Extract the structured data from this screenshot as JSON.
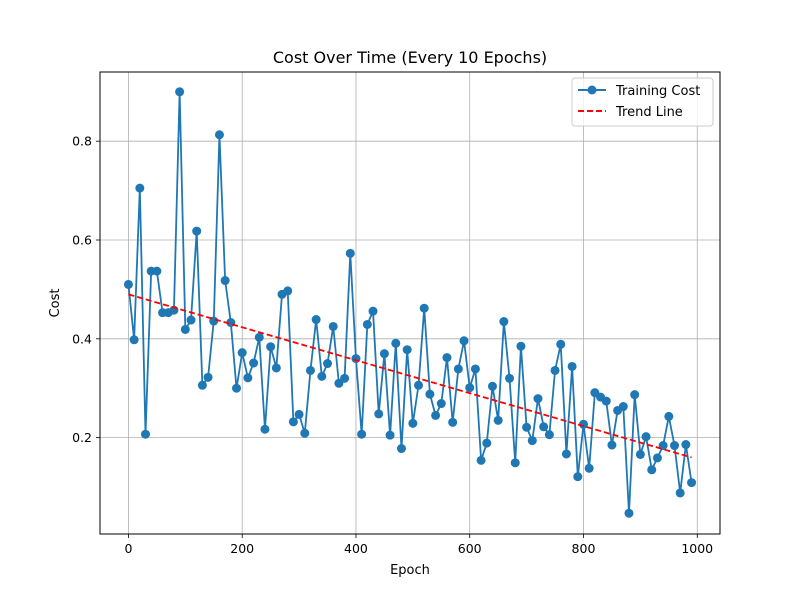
{
  "chart_data": {
    "type": "line",
    "title": "Cost Over Time (Every 10 Epochs)",
    "xlabel": "Epoch",
    "ylabel": "Cost",
    "xlim": [
      -50,
      1040
    ],
    "ylim": [
      0.005,
      0.94
    ],
    "x_ticks": [
      0,
      200,
      400,
      600,
      800,
      1000
    ],
    "y_ticks": [
      0.2,
      0.4,
      0.6,
      0.8
    ],
    "x_tick_labels": [
      "0",
      "200",
      "400",
      "600",
      "800",
      "1000"
    ],
    "y_tick_labels": [
      "0.2",
      "0.4",
      "0.6",
      "0.8"
    ],
    "grid": true,
    "legend_position": "top-right",
    "x": [
      0,
      10,
      20,
      30,
      40,
      50,
      60,
      70,
      80,
      90,
      100,
      110,
      120,
      130,
      140,
      150,
      160,
      170,
      180,
      190,
      200,
      210,
      220,
      230,
      240,
      250,
      260,
      270,
      280,
      290,
      300,
      310,
      320,
      330,
      340,
      350,
      360,
      370,
      380,
      390,
      400,
      410,
      420,
      430,
      440,
      450,
      460,
      470,
      480,
      490,
      500,
      510,
      520,
      530,
      540,
      550,
      560,
      570,
      580,
      590,
      600,
      610,
      620,
      630,
      640,
      650,
      660,
      670,
      680,
      690,
      700,
      710,
      720,
      730,
      740,
      750,
      760,
      770,
      780,
      790,
      800,
      810,
      820,
      830,
      840,
      850,
      860,
      870,
      880,
      890,
      900,
      910,
      920,
      930,
      940,
      950,
      960,
      970,
      980,
      990
    ],
    "series": [
      {
        "name": "Training Cost",
        "color": "#1f77b4",
        "style": "solid-with-circle-markers",
        "values": [
          0.51,
          0.398,
          0.705,
          0.207,
          0.537,
          0.537,
          0.453,
          0.453,
          0.458,
          0.9,
          0.419,
          0.438,
          0.618,
          0.306,
          0.322,
          0.436,
          0.813,
          0.518,
          0.433,
          0.3,
          0.372,
          0.321,
          0.351,
          0.403,
          0.217,
          0.384,
          0.341,
          0.49,
          0.497,
          0.232,
          0.247,
          0.209,
          0.336,
          0.439,
          0.324,
          0.35,
          0.425,
          0.31,
          0.32,
          0.573,
          0.36,
          0.207,
          0.429,
          0.456,
          0.248,
          0.37,
          0.205,
          0.391,
          0.178,
          0.378,
          0.229,
          0.306,
          0.462,
          0.288,
          0.245,
          0.269,
          0.362,
          0.231,
          0.339,
          0.396,
          0.301,
          0.339,
          0.154,
          0.189,
          0.304,
          0.235,
          0.435,
          0.32,
          0.149,
          0.385,
          0.221,
          0.194,
          0.279,
          0.222,
          0.206,
          0.336,
          0.389,
          0.167,
          0.344,
          0.121,
          0.227,
          0.138,
          0.291,
          0.282,
          0.274,
          0.185,
          0.255,
          0.263,
          0.047,
          0.287,
          0.166,
          0.202,
          0.135,
          0.159,
          0.184,
          0.243,
          0.184,
          0.088,
          0.186,
          0.109
        ]
      },
      {
        "name": "Trend Line",
        "color": "#ff0000",
        "style": "dashed",
        "x": [
          0,
          990
        ],
        "values": [
          0.49,
          0.16
        ]
      }
    ]
  }
}
